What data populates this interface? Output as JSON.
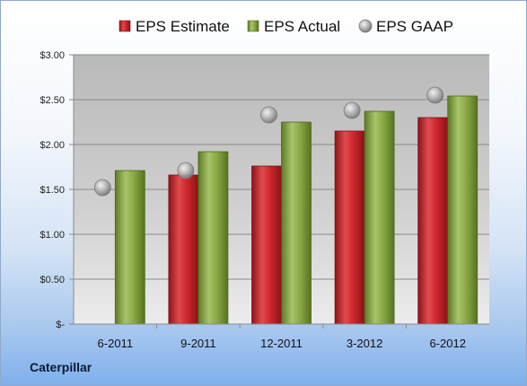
{
  "company": "Caterpillar",
  "chart_data": {
    "type": "bar",
    "categories": [
      "6-2011",
      "9-2011",
      "12-2011",
      "3-2012",
      "6-2012"
    ],
    "series": [
      {
        "name": "EPS Estimate",
        "kind": "bar",
        "color": "#c0262c",
        "values": [
          null,
          1.66,
          1.76,
          2.15,
          2.3
        ]
      },
      {
        "name": "EPS Actual",
        "kind": "bar",
        "color": "#7c9a3a",
        "values": [
          1.71,
          1.92,
          2.25,
          2.37,
          2.54
        ]
      },
      {
        "name": "EPS GAAP",
        "kind": "marker",
        "color": "#a8a8a8",
        "values": [
          1.52,
          1.71,
          2.33,
          2.38,
          2.55
        ]
      }
    ],
    "ylim": [
      0,
      3
    ],
    "yticks": [
      {
        "value": 0,
        "label": "$-"
      },
      {
        "value": 0.5,
        "label": "$0.50"
      },
      {
        "value": 1.0,
        "label": "$1.00"
      },
      {
        "value": 1.5,
        "label": "$1.50"
      },
      {
        "value": 2.0,
        "label": "$2.00"
      },
      {
        "value": 2.5,
        "label": "$2.50"
      },
      {
        "value": 3.0,
        "label": "$3.00"
      }
    ],
    "legend_position": "top",
    "grid": true
  }
}
